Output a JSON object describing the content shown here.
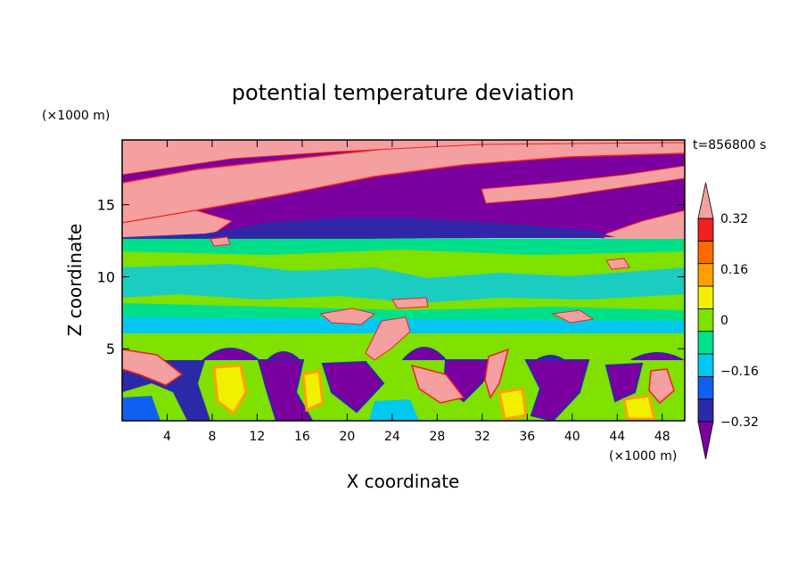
{
  "chart_data": {
    "type": "heatmap",
    "title": "potential temperature deviation",
    "xlabel": "X coordinate",
    "ylabel": "Z coordinate",
    "x_unit": "(×1000 m)",
    "y_unit": "(×1000 m)",
    "time_label": "t=856800 s",
    "xlim": [
      0,
      50
    ],
    "ylim": [
      0,
      19.5
    ],
    "x_ticks": [
      4,
      8,
      12,
      16,
      20,
      24,
      28,
      32,
      36,
      40,
      44,
      48
    ],
    "x_tick_labels": [
      "4",
      "8",
      "12",
      "16",
      "20",
      "24",
      "28",
      "32",
      "36",
      "40",
      "44",
      "48"
    ],
    "y_ticks": [
      5,
      10,
      15
    ],
    "y_tick_labels": [
      "5",
      "10",
      "15"
    ],
    "colorbar": {
      "levels": [
        -0.4,
        -0.32,
        -0.24,
        -0.16,
        -0.08,
        0,
        0.08,
        0.16,
        0.24,
        0.32,
        0.4
      ],
      "labels": [
        "0.32",
        "0.16",
        "0",
        "−0.16",
        "−0.32"
      ],
      "label_values": [
        0.32,
        0.16,
        0,
        -0.16,
        -0.32
      ],
      "colors": [
        "#7a00a0",
        "#2a2aa8",
        "#1060f0",
        "#00c8f0",
        "#00e08a",
        "#80e000",
        "#f0f000",
        "#ffa000",
        "#ff6a00",
        "#f02020",
        "#f4a0a0"
      ],
      "extend": "both"
    }
  }
}
